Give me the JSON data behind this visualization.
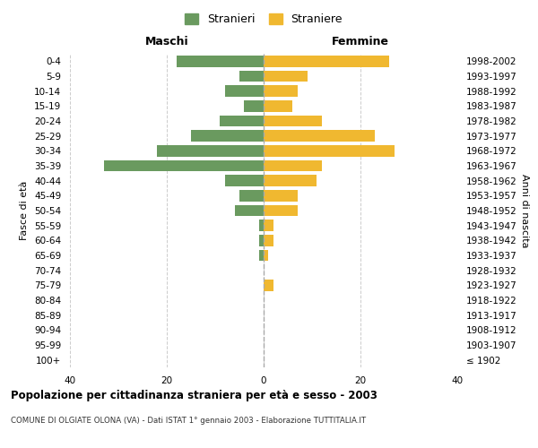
{
  "age_groups": [
    "100+",
    "95-99",
    "90-94",
    "85-89",
    "80-84",
    "75-79",
    "70-74",
    "65-69",
    "60-64",
    "55-59",
    "50-54",
    "45-49",
    "40-44",
    "35-39",
    "30-34",
    "25-29",
    "20-24",
    "15-19",
    "10-14",
    "5-9",
    "0-4"
  ],
  "birth_years": [
    "≤ 1902",
    "1903-1907",
    "1908-1912",
    "1913-1917",
    "1918-1922",
    "1923-1927",
    "1928-1932",
    "1933-1937",
    "1938-1942",
    "1943-1947",
    "1948-1952",
    "1953-1957",
    "1958-1962",
    "1963-1967",
    "1968-1972",
    "1973-1977",
    "1978-1982",
    "1983-1987",
    "1988-1992",
    "1993-1997",
    "1998-2002"
  ],
  "maschi": [
    0,
    0,
    0,
    0,
    0,
    0,
    0,
    1,
    1,
    1,
    6,
    5,
    8,
    33,
    22,
    15,
    9,
    4,
    8,
    5,
    18
  ],
  "femmine": [
    0,
    0,
    0,
    0,
    0,
    2,
    0,
    1,
    2,
    2,
    7,
    7,
    11,
    12,
    27,
    23,
    12,
    6,
    7,
    9,
    26
  ],
  "maschi_color": "#6a9a5f",
  "femmine_color": "#f0b830",
  "title": "Popolazione per cittadinanza straniera per età e sesso - 2003",
  "subtitle": "COMUNE DI OLGIATE OLONA (VA) - Dati ISTAT 1° gennaio 2003 - Elaborazione TUTTITALIA.IT",
  "ylabel_left": "Fasce di età",
  "ylabel_right": "Anni di nascita",
  "xlabel_maschi": "Maschi",
  "xlabel_femmine": "Femmine",
  "legend_maschi": "Stranieri",
  "legend_femmine": "Straniere",
  "xlim": 40,
  "background_color": "#ffffff",
  "grid_color": "#cccccc"
}
